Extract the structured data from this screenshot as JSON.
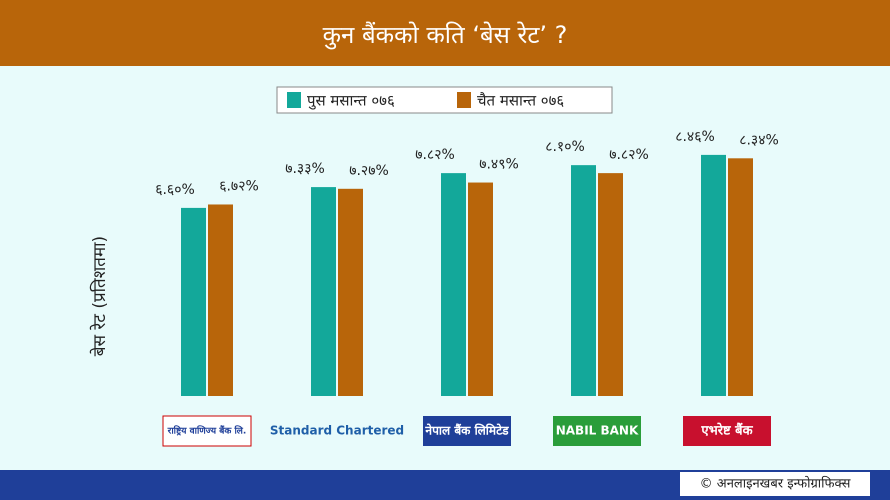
{
  "chart_data": {
    "type": "bar",
    "title": "कुन बैंकको कति ‘बेस रेट’ ?",
    "y_label": "बेस रेट (प्रतिशतमा)",
    "categories": [
      "राष्ट्रिय वाणिज्य बैंक लि.",
      "Standard Chartered",
      "नेपाल बैंक लिमिटेड",
      "NABIL BANK",
      "एभरेष्ट बैंक"
    ],
    "series": [
      {
        "name": "पुस मसान्त ०७६",
        "color": "#13a89a",
        "values": [
          6.6,
          7.33,
          7.82,
          8.1,
          8.46
        ],
        "value_labels": [
          "६.६०%",
          "७.३३%",
          "७.८२%",
          "८.१०%",
          "८.४६%"
        ]
      },
      {
        "name": "चैत मसान्त ०७६",
        "color": "#b8650a",
        "values": [
          6.72,
          7.27,
          7.49,
          7.82,
          8.34
        ],
        "value_labels": [
          "६.७२%",
          "७.२७%",
          "७.४९%",
          "७.८२%",
          "८.३४%"
        ]
      }
    ],
    "ylim": [
      0,
      10
    ],
    "legend": "top",
    "footer": "© अनलाइनखबर इन्फोग्राफिक्स"
  }
}
